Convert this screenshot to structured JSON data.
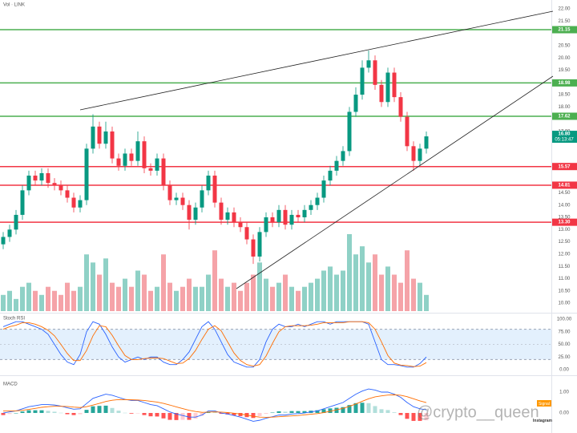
{
  "chart_data": [
    {
      "type": "candlestick",
      "title": "Vol · LINK",
      "open": [
        12.4,
        12.7,
        13.0,
        13.6,
        14.6,
        15.2,
        15.0,
        15.3,
        14.9,
        14.8,
        14.6,
        14.3,
        13.9,
        14.2,
        16.3,
        17.2,
        16.5,
        17.0,
        15.9,
        15.6,
        16.1,
        15.8,
        16.6,
        15.5,
        15.4,
        15.9,
        14.8,
        14.2,
        14.3,
        14.0,
        13.4,
        13.9,
        14.6,
        15.2,
        14.1,
        13.4,
        13.7,
        13.3,
        13.1,
        12.6,
        11.9,
        12.9,
        13.5,
        13.3,
        13.8,
        13.2,
        13.6,
        13.5,
        13.8,
        14.0,
        14.3,
        15.0,
        15.4,
        15.8,
        16.2,
        17.8,
        18.5,
        19.6,
        19.9,
        18.9,
        18.2,
        19.4,
        18.4,
        17.6,
        16.4,
        15.8,
        16.3
      ],
      "high": [
        12.9,
        13.2,
        13.8,
        14.8,
        15.4,
        15.4,
        15.5,
        15.5,
        15.1,
        15.0,
        14.8,
        14.5,
        14.4,
        16.5,
        17.7,
        17.4,
        17.4,
        17.2,
        16.1,
        16.3,
        16.3,
        17.0,
        16.8,
        15.7,
        16.1,
        16.1,
        15.0,
        14.5,
        14.5,
        14.2,
        14.1,
        14.8,
        15.4,
        15.4,
        14.3,
        13.9,
        13.9,
        13.5,
        13.3,
        12.8,
        13.1,
        13.7,
        13.7,
        14.0,
        14.0,
        13.8,
        13.8,
        14.0,
        14.2,
        14.5,
        15.2,
        15.6,
        16.0,
        16.4,
        18.0,
        18.8,
        19.9,
        20.3,
        20.1,
        19.1,
        19.6,
        19.6,
        18.6,
        17.8,
        16.6,
        16.5,
        17.0
      ],
      "low": [
        12.2,
        12.5,
        12.8,
        13.4,
        14.4,
        14.8,
        14.8,
        14.7,
        14.6,
        14.4,
        14.1,
        13.7,
        13.7,
        14.0,
        16.1,
        16.3,
        16.3,
        15.7,
        15.4,
        15.4,
        15.6,
        15.6,
        15.3,
        15.2,
        15.2,
        14.6,
        14.0,
        14.0,
        13.8,
        13.0,
        13.2,
        13.7,
        14.4,
        13.9,
        13.2,
        13.2,
        13.1,
        12.9,
        12.4,
        11.6,
        11.7,
        12.7,
        13.1,
        13.1,
        13.0,
        13.0,
        13.3,
        13.3,
        13.6,
        13.8,
        14.1,
        14.8,
        15.2,
        15.6,
        16.0,
        17.6,
        18.3,
        19.4,
        18.7,
        18.0,
        18.0,
        18.2,
        17.4,
        16.2,
        15.4,
        15.6,
        16.1
      ],
      "close": [
        12.7,
        13.0,
        13.6,
        14.6,
        15.2,
        15.0,
        15.3,
        14.9,
        14.8,
        14.6,
        14.3,
        13.9,
        14.2,
        16.3,
        17.2,
        16.5,
        17.0,
        15.9,
        15.6,
        16.1,
        15.8,
        16.6,
        15.5,
        15.4,
        15.9,
        14.8,
        14.2,
        14.3,
        14.0,
        13.4,
        13.9,
        14.6,
        15.2,
        14.1,
        13.4,
        13.7,
        13.3,
        13.1,
        12.6,
        11.9,
        12.9,
        13.5,
        13.3,
        13.8,
        13.2,
        13.6,
        13.5,
        13.8,
        14.0,
        14.3,
        15.0,
        15.4,
        15.8,
        16.2,
        17.8,
        18.5,
        19.6,
        19.9,
        18.9,
        18.2,
        19.4,
        18.4,
        17.6,
        16.4,
        15.8,
        16.3,
        16.8
      ],
      "volume": [
        20,
        25,
        15,
        30,
        35,
        25,
        20,
        30,
        25,
        20,
        35,
        25,
        30,
        70,
        60,
        45,
        65,
        35,
        30,
        40,
        30,
        50,
        45,
        25,
        30,
        70,
        35,
        25,
        30,
        40,
        30,
        30,
        45,
        75,
        40,
        30,
        35,
        25,
        35,
        45,
        60,
        40,
        30,
        35,
        45,
        30,
        25,
        30,
        35,
        40,
        50,
        55,
        45,
        50,
        95,
        70,
        80,
        60,
        70,
        45,
        55,
        45,
        35,
        75,
        40,
        35,
        20
      ],
      "colors": {
        "up": "#089981",
        "down": "#f23645",
        "volume_up": "#8fd1c6",
        "volume_down": "#f5a3a8"
      },
      "ylim": [
        9.61,
        22.36
      ],
      "yticks": [
        {
          "value": 22,
          "label": "22.00"
        },
        {
          "value": 21.5,
          "label": "21.50"
        },
        {
          "value": 20.5,
          "label": "20.50"
        },
        {
          "value": 20,
          "label": "20.00"
        },
        {
          "value": 19.5,
          "label": "19.50"
        },
        {
          "value": 18.5,
          "label": "18.50"
        },
        {
          "value": 18,
          "label": "18.00"
        },
        {
          "value": 17,
          "label": "17.00"
        },
        {
          "value": 15.5,
          "label": "15.50"
        },
        {
          "value": 14.5,
          "label": "14.50"
        },
        {
          "value": 14,
          "label": "14.00"
        },
        {
          "value": 13.5,
          "label": "13.50"
        },
        {
          "value": 13,
          "label": "13.00"
        },
        {
          "value": 12.5,
          "label": "12.50"
        },
        {
          "value": 12,
          "label": "12.00"
        },
        {
          "value": 11.5,
          "label": "11.50"
        },
        {
          "value": 11,
          "label": "11.00"
        },
        {
          "value": 10.5,
          "label": "10.50"
        },
        {
          "value": 10,
          "label": "10.00"
        }
      ],
      "levels": [
        {
          "value": 21.15,
          "label": "21.15",
          "color": "#4caf50"
        },
        {
          "value": 18.98,
          "label": "18.98",
          "color": "#4caf50"
        },
        {
          "value": 17.62,
          "label": "17.62",
          "color": "#4caf50"
        },
        {
          "value": 15.57,
          "label": "15.57",
          "color": "#f23645"
        },
        {
          "value": 14.81,
          "label": "14.81",
          "color": "#f23645"
        },
        {
          "value": 13.3,
          "label": "13.30",
          "color": "#f23645"
        }
      ],
      "last_price": {
        "value": 16.8,
        "label": "16.80",
        "countdown": "05:13:47",
        "color": "#089981"
      }
    },
    {
      "type": "line",
      "title": "Stoch RSI",
      "series": [
        {
          "color": "#2962ff",
          "values": [
            85,
            90,
            95,
            95,
            90,
            85,
            80,
            70,
            50,
            30,
            15,
            10,
            30,
            75,
            95,
            90,
            70,
            45,
            25,
            15,
            20,
            25,
            20,
            25,
            25,
            15,
            10,
            10,
            20,
            35,
            60,
            85,
            95,
            80,
            55,
            30,
            15,
            10,
            5,
            5,
            20,
            55,
            80,
            90,
            85,
            85,
            90,
            85,
            90,
            95,
            95,
            90,
            95,
            95,
            95,
            95,
            95,
            90,
            55,
            20,
            10,
            10,
            8,
            5,
            5,
            12,
            25
          ]
        },
        {
          "color": "#ff6d00",
          "values": [
            80,
            85,
            88,
            93,
            93,
            90,
            85,
            78,
            67,
            50,
            32,
            18,
            18,
            38,
            67,
            87,
            85,
            68,
            47,
            28,
            20,
            20,
            22,
            23,
            23,
            22,
            17,
            12,
            13,
            22,
            38,
            60,
            80,
            87,
            77,
            55,
            33,
            18,
            10,
            7,
            10,
            27,
            52,
            75,
            85,
            87,
            87,
            87,
            88,
            90,
            93,
            93,
            93,
            93,
            95,
            95,
            95,
            93,
            80,
            55,
            28,
            13,
            9,
            8,
            6,
            7,
            14
          ]
        }
      ],
      "ylim": [
        0,
        100
      ],
      "yticks": [
        {
          "value": 100,
          "label": "100.00"
        },
        {
          "value": 75,
          "label": "75.00"
        },
        {
          "value": 50,
          "label": "50.00"
        },
        {
          "value": 25,
          "label": "25.00"
        },
        {
          "value": 0,
          "label": "0.00"
        }
      ]
    },
    {
      "type": "macd",
      "title": "MACD",
      "series": [
        {
          "color": "#2962ff",
          "values": [
            0,
            0.05,
            0.1,
            0.2,
            0.3,
            0.35,
            0.4,
            0.4,
            0.38,
            0.33,
            0.25,
            0.18,
            0.2,
            0.45,
            0.7,
            0.8,
            0.9,
            0.85,
            0.75,
            0.65,
            0.6,
            0.6,
            0.5,
            0.4,
            0.35,
            0.2,
            0.05,
            -0.05,
            -0.12,
            -0.2,
            -0.2,
            -0.1,
            0.1,
            0.1,
            0,
            -0.05,
            -0.12,
            -0.2,
            -0.3,
            -0.4,
            -0.35,
            -0.25,
            -0.18,
            -0.1,
            -0.1,
            -0.05,
            -0.03,
            0,
            0.05,
            0.1,
            0.2,
            0.3,
            0.4,
            0.5,
            0.7,
            0.9,
            1.05,
            1.15,
            1.1,
            1.0,
            1.0,
            0.9,
            0.75,
            0.5,
            0.3,
            0.2,
            0.15
          ]
        },
        {
          "color": "#ff6d00",
          "values": [
            0.1,
            0.1,
            0.1,
            0.13,
            0.17,
            0.22,
            0.27,
            0.3,
            0.32,
            0.32,
            0.31,
            0.28,
            0.26,
            0.3,
            0.38,
            0.46,
            0.55,
            0.61,
            0.64,
            0.64,
            0.63,
            0.62,
            0.6,
            0.56,
            0.52,
            0.46,
            0.38,
            0.29,
            0.21,
            0.13,
            0.07,
            0.03,
            0.04,
            0.05,
            0.04,
            0.02,
            -0.01,
            -0.05,
            -0.1,
            -0.16,
            -0.2,
            -0.21,
            -0.2,
            -0.18,
            -0.16,
            -0.14,
            -0.12,
            -0.09,
            -0.06,
            -0.03,
            0.02,
            0.08,
            0.15,
            0.22,
            0.32,
            0.43,
            0.56,
            0.68,
            0.77,
            0.82,
            0.86,
            0.87,
            0.85,
            0.78,
            0.68,
            0.58,
            0.5
          ]
        }
      ],
      "histogram": [
        -0.1,
        -0.05,
        0,
        0.07,
        0.13,
        0.13,
        0.13,
        0.1,
        0.06,
        0.01,
        -0.06,
        -0.1,
        -0.06,
        0.15,
        0.32,
        0.34,
        0.35,
        0.24,
        0.11,
        0.01,
        -0.03,
        -0.02,
        -0.1,
        -0.16,
        -0.17,
        -0.26,
        -0.33,
        -0.34,
        -0.33,
        -0.33,
        -0.27,
        -0.13,
        0.06,
        0.05,
        -0.04,
        -0.07,
        -0.11,
        -0.15,
        -0.2,
        -0.24,
        -0.15,
        -0.04,
        0.02,
        0.08,
        0.06,
        0.09,
        0.09,
        0.09,
        0.11,
        0.13,
        0.18,
        0.22,
        0.25,
        0.28,
        0.38,
        0.47,
        0.49,
        0.47,
        0.33,
        0.18,
        0.14,
        0.03,
        -0.1,
        -0.28,
        -0.38,
        -0.38,
        -0.35
      ],
      "colors": {
        "up": "#26a69a",
        "up_fading": "#b2dfdb",
        "down": "#ff5252",
        "down_fading": "#ffcdd2"
      },
      "ylim": [
        -0.96,
        1.73
      ],
      "yticks": [
        {
          "value": 1,
          "label": "1.00"
        },
        {
          "value": 0,
          "label": "0.00"
        }
      ]
    }
  ],
  "watermark": {
    "handle": "@crypto__queen",
    "platform": "Instagram",
    "badge": "Signal"
  }
}
